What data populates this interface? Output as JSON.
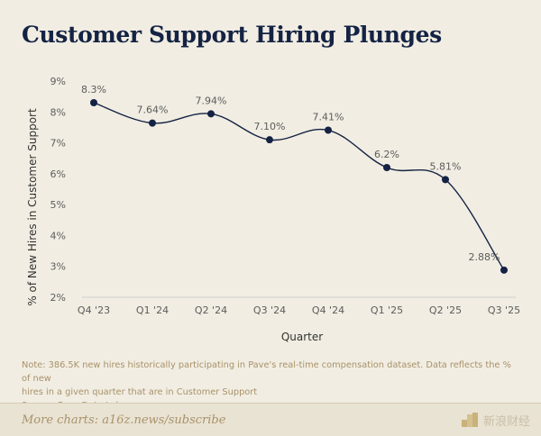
{
  "header": {
    "title": "Customer Support Hiring Plunges"
  },
  "note": {
    "lines": [
      "Note: 386.5K new hires historically participating in Pave's real-time compensation dataset. Data reflects the % of new",
      "hires in a given quarter that are in Customer Support",
      "Source: Pave Data Lab"
    ]
  },
  "footer": {
    "link": "More charts: a16z.news/subscribe",
    "watermark": "新浪财经"
  },
  "colors": {
    "background": "#f1ede2",
    "title": "#142344",
    "line": "#142344",
    "point": "#142344",
    "tick_text": "#5c5c5c",
    "note_text": "#a9926a",
    "axis": "#cfcfcf"
  },
  "chart_data": {
    "type": "line",
    "title": "Customer Support Hiring Plunges",
    "xlabel": "Quarter",
    "ylabel": "% of New Hires in Customer Support",
    "categories": [
      "Q4 '23",
      "Q1 '24",
      "Q2 '24",
      "Q3 '24",
      "Q4 '24",
      "Q1 '25",
      "Q2 '25",
      "Q3 '25"
    ],
    "series": [
      {
        "values": [
          8.3,
          7.64,
          7.94,
          7.1,
          7.41,
          6.2,
          5.81,
          2.88
        ],
        "labels": [
          "8.3%",
          "7.64%",
          "7.94%",
          "7.10%",
          "7.41%",
          "6.2%",
          "5.81%",
          "2.88%"
        ]
      }
    ],
    "ylim": [
      2,
      9
    ],
    "yticks": [
      2,
      3,
      4,
      5,
      6,
      7,
      8,
      9
    ],
    "ytick_labels": [
      "2%",
      "3%",
      "4%",
      "5%",
      "6%",
      "7%",
      "8%",
      "9%"
    ],
    "grid": false,
    "legend": "none",
    "curve": "smooth"
  }
}
